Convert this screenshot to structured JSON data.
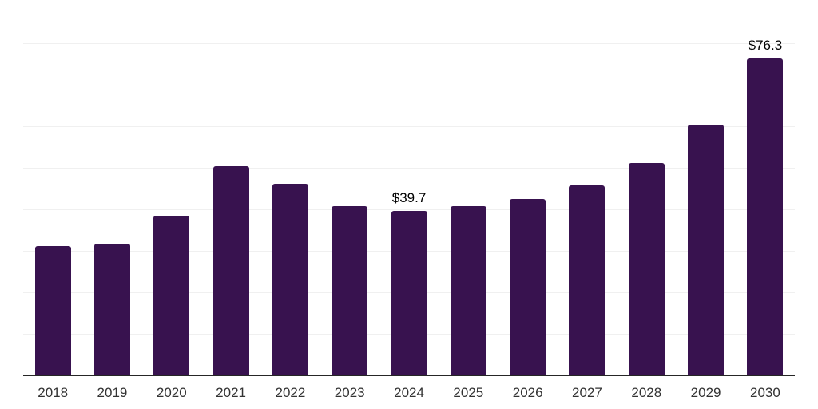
{
  "chart_data": {
    "type": "bar",
    "categories": [
      "2018",
      "2019",
      "2020",
      "2021",
      "2022",
      "2023",
      "2024",
      "2025",
      "2026",
      "2027",
      "2028",
      "2029",
      "2030"
    ],
    "values": [
      31.2,
      31.8,
      38.5,
      50.4,
      46.2,
      40.7,
      39.7,
      40.7,
      42.6,
      45.8,
      51.2,
      60.4,
      76.3
    ],
    "data_labels": [
      "",
      "",
      "",
      "",
      "",
      "",
      "$39.7",
      "",
      "",
      "",
      "",
      "",
      "$76.3"
    ],
    "unit_prefix": "$",
    "ylim": [
      0,
      90
    ],
    "gridline_step": 10,
    "grid": true,
    "legend": false,
    "colors": {
      "bar": "#38124F",
      "gridline": "#f0f0f0",
      "axis_line": "#262626",
      "tick_label": "#333333",
      "data_label": "#000000",
      "background": "#ffffff"
    }
  }
}
